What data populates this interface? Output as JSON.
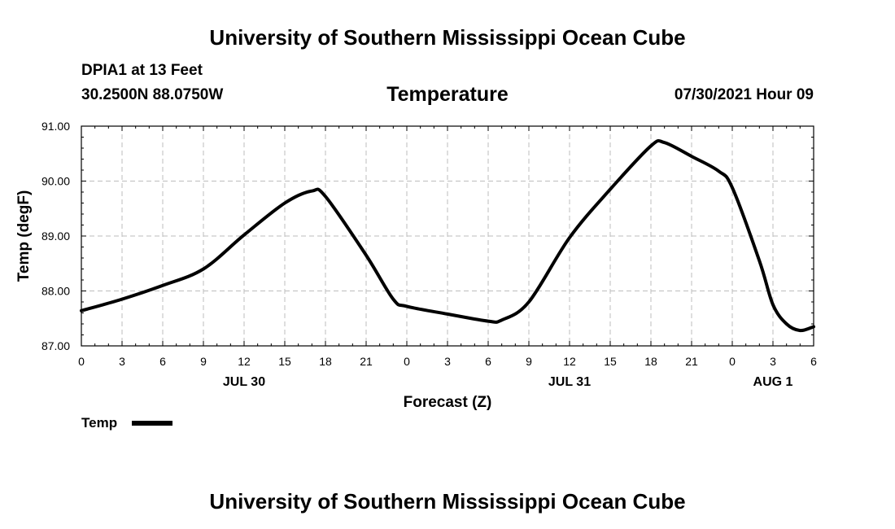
{
  "header": {
    "title_top": "University of Southern Mississippi Ocean Cube",
    "station": "DPIA1 at 13 Feet",
    "coords": "30.2500N  88.0750W",
    "variable": "Temperature",
    "timestamp": "07/30/2021 Hour 09"
  },
  "footer": {
    "title_bottom": "University of Southern Mississippi Ocean Cube"
  },
  "legend": {
    "label": "Temp"
  },
  "chart_data": {
    "type": "line",
    "title": "Temperature",
    "xlabel": "Forecast (Z)",
    "ylabel": "Temp (degF)",
    "x_unit": "forecast hours from 2021-07-30 00Z",
    "xlim": [
      0,
      54
    ],
    "ylim": [
      87.0,
      91.0
    ],
    "y_ticks": [
      "87.00",
      "88.00",
      "89.00",
      "90.00",
      "91.00"
    ],
    "x_ticks": [
      {
        "x": 0,
        "label": "0"
      },
      {
        "x": 3,
        "label": "3"
      },
      {
        "x": 6,
        "label": "6"
      },
      {
        "x": 9,
        "label": "9"
      },
      {
        "x": 12,
        "label": "12"
      },
      {
        "x": 15,
        "label": "15"
      },
      {
        "x": 18,
        "label": "18"
      },
      {
        "x": 21,
        "label": "21"
      },
      {
        "x": 24,
        "label": "0"
      },
      {
        "x": 27,
        "label": "3"
      },
      {
        "x": 30,
        "label": "6"
      },
      {
        "x": 33,
        "label": "9"
      },
      {
        "x": 36,
        "label": "12"
      },
      {
        "x": 39,
        "label": "15"
      },
      {
        "x": 42,
        "label": "18"
      },
      {
        "x": 45,
        "label": "21"
      },
      {
        "x": 48,
        "label": "0"
      },
      {
        "x": 51,
        "label": "3"
      },
      {
        "x": 54,
        "label": "6"
      }
    ],
    "date_labels": [
      {
        "x": 12,
        "label": "JUL 30"
      },
      {
        "x": 36,
        "label": "JUL 31"
      },
      {
        "x": 51,
        "label": "AUG 1"
      }
    ],
    "grid": true,
    "series": [
      {
        "name": "Temp",
        "color": "#000000",
        "x": [
          0,
          3,
          6,
          9,
          12,
          15,
          17,
          18,
          21,
          23,
          24,
          27,
          30,
          31,
          33,
          36,
          39,
          42,
          43,
          45,
          47,
          48,
          50,
          51,
          52,
          53,
          54
        ],
        "y": [
          87.64,
          87.85,
          88.1,
          88.4,
          89.02,
          89.6,
          89.82,
          89.72,
          88.65,
          87.85,
          87.72,
          87.58,
          87.45,
          87.47,
          87.8,
          88.97,
          89.85,
          90.64,
          90.7,
          90.45,
          90.18,
          89.88,
          88.55,
          87.75,
          87.4,
          87.28,
          87.35
        ]
      }
    ]
  }
}
